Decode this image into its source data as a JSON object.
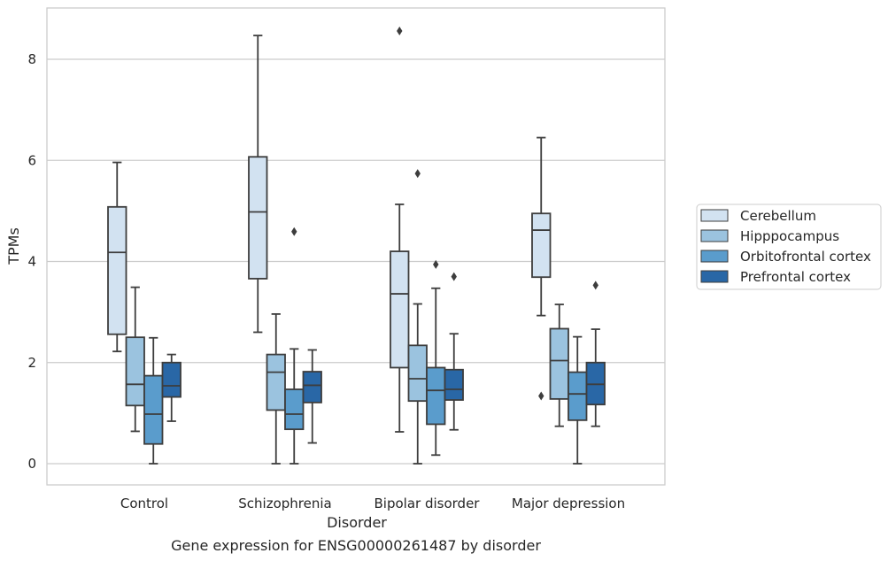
{
  "chart_data": {
    "type": "box",
    "caption": "Gene expression for ENSG00000261487 by disorder",
    "xlabel": "Disorder",
    "ylabel": "TPMs",
    "ylim": [
      -0.4,
      9.0
    ],
    "yticks": [
      0,
      2,
      4,
      6,
      8
    ],
    "grid": "horizontal",
    "legend_position": "right",
    "categories": [
      "Control",
      "Schizophrenia",
      "Bipolar disorder",
      "Major depression"
    ],
    "series": [
      {
        "name": "Cerebellum",
        "color": "#d2e2f1",
        "boxes": [
          {
            "whisker_low": 2.22,
            "q1": 2.56,
            "median": 4.18,
            "q3": 5.08,
            "whisker_high": 5.96,
            "outliers": []
          },
          {
            "whisker_low": 2.6,
            "q1": 3.66,
            "median": 4.98,
            "q3": 6.07,
            "whisker_high": 8.47,
            "outliers": []
          },
          {
            "whisker_low": 0.63,
            "q1": 1.9,
            "median": 3.36,
            "q3": 4.2,
            "whisker_high": 5.13,
            "outliers": [
              8.56
            ]
          },
          {
            "whisker_low": 2.93,
            "q1": 3.69,
            "median": 4.62,
            "q3": 4.95,
            "whisker_high": 6.45,
            "outliers": [
              1.34
            ]
          }
        ]
      },
      {
        "name": "Hipppocampus",
        "color": "#9bc3df",
        "boxes": [
          {
            "whisker_low": 0.64,
            "q1": 1.15,
            "median": 1.57,
            "q3": 2.5,
            "whisker_high": 3.49,
            "outliers": []
          },
          {
            "whisker_low": 0.0,
            "q1": 1.06,
            "median": 1.81,
            "q3": 2.16,
            "whisker_high": 2.96,
            "outliers": []
          },
          {
            "whisker_low": 0.0,
            "q1": 1.24,
            "median": 1.68,
            "q3": 2.34,
            "whisker_high": 3.16,
            "outliers": [
              5.74
            ]
          },
          {
            "whisker_low": 0.74,
            "q1": 1.28,
            "median": 2.04,
            "q3": 2.67,
            "whisker_high": 3.15,
            "outliers": []
          }
        ]
      },
      {
        "name": "Orbitofrontal cortex",
        "color": "#5a9ccc",
        "boxes": [
          {
            "whisker_low": 0.0,
            "q1": 0.39,
            "median": 0.98,
            "q3": 1.74,
            "whisker_high": 2.49,
            "outliers": []
          },
          {
            "whisker_low": 0.0,
            "q1": 0.68,
            "median": 0.98,
            "q3": 1.47,
            "whisker_high": 2.27,
            "outliers": [
              4.59
            ]
          },
          {
            "whisker_low": 0.17,
            "q1": 0.78,
            "median": 1.45,
            "q3": 1.9,
            "whisker_high": 3.47,
            "outliers": [
              3.94
            ]
          },
          {
            "whisker_low": 0.0,
            "q1": 0.86,
            "median": 1.38,
            "q3": 1.81,
            "whisker_high": 2.51,
            "outliers": []
          }
        ]
      },
      {
        "name": "Prefrontal cortex",
        "color": "#2967a6",
        "boxes": [
          {
            "whisker_low": 0.84,
            "q1": 1.32,
            "median": 1.54,
            "q3": 2.0,
            "whisker_high": 2.16,
            "outliers": []
          },
          {
            "whisker_low": 0.41,
            "q1": 1.21,
            "median": 1.55,
            "q3": 1.82,
            "whisker_high": 2.25,
            "outliers": []
          },
          {
            "whisker_low": 0.67,
            "q1": 1.26,
            "median": 1.47,
            "q3": 1.86,
            "whisker_high": 2.57,
            "outliers": [
              3.7
            ]
          },
          {
            "whisker_low": 0.74,
            "q1": 1.17,
            "median": 1.57,
            "q3": 2.0,
            "whisker_high": 2.66,
            "outliers": [
              3.53
            ]
          }
        ]
      }
    ]
  }
}
